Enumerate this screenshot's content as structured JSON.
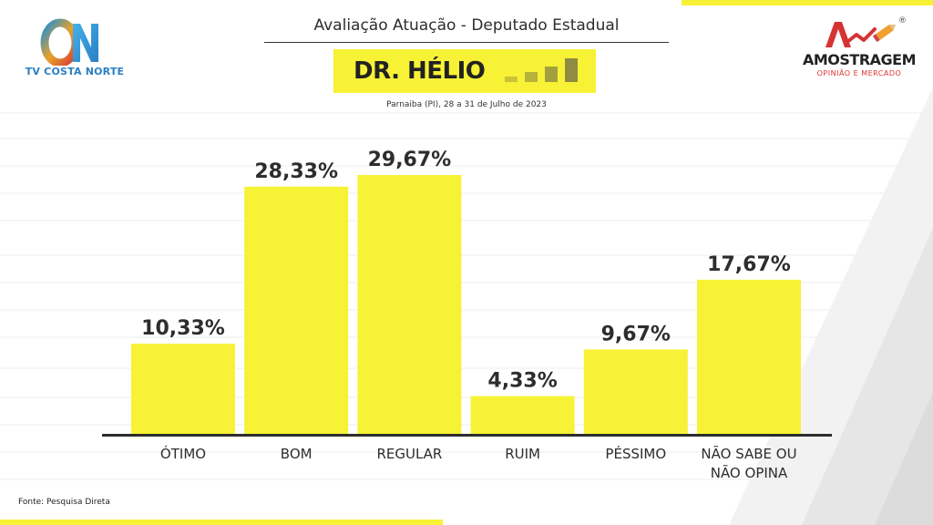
{
  "header": {
    "title": "Avaliação Atuação - Deputado Estadual",
    "candidate": "DR. HÉLIO",
    "subtitle": "Parnaiba (PI), 28 a 31 de Julho de 2023"
  },
  "logos": {
    "left": {
      "text": "TV COSTA NORTE",
      "mark": "ON"
    },
    "right": {
      "name": "AMOSTRAGEM",
      "tagline": "OPINIÃO E MERCADO",
      "registered": "®"
    }
  },
  "footer": {
    "source": "Fonte: Pesquisa Direta"
  },
  "colors": {
    "bar": "#f7f236",
    "text": "#2d2d2d",
    "accent_red": "#d33333",
    "accent_blue": "#2b7fc4"
  },
  "chart_data": {
    "type": "bar",
    "categories": [
      [
        "ÓTIMO"
      ],
      [
        "BOM"
      ],
      [
        "REGULAR"
      ],
      [
        "RUIM"
      ],
      [
        "PÉSSIMO"
      ],
      [
        "NÃO SABE OU",
        "NÃO OPINA"
      ]
    ],
    "values": [
      10.33,
      28.33,
      29.67,
      4.33,
      9.67,
      17.67
    ],
    "value_labels": [
      "10,33%",
      "28,33%",
      "29,67%",
      "4,33%",
      "9,67%",
      "17,67%"
    ],
    "title": "",
    "xlabel": "",
    "ylabel": "",
    "ylim": [
      0,
      29.67
    ],
    "grid": true,
    "legend": "none"
  }
}
